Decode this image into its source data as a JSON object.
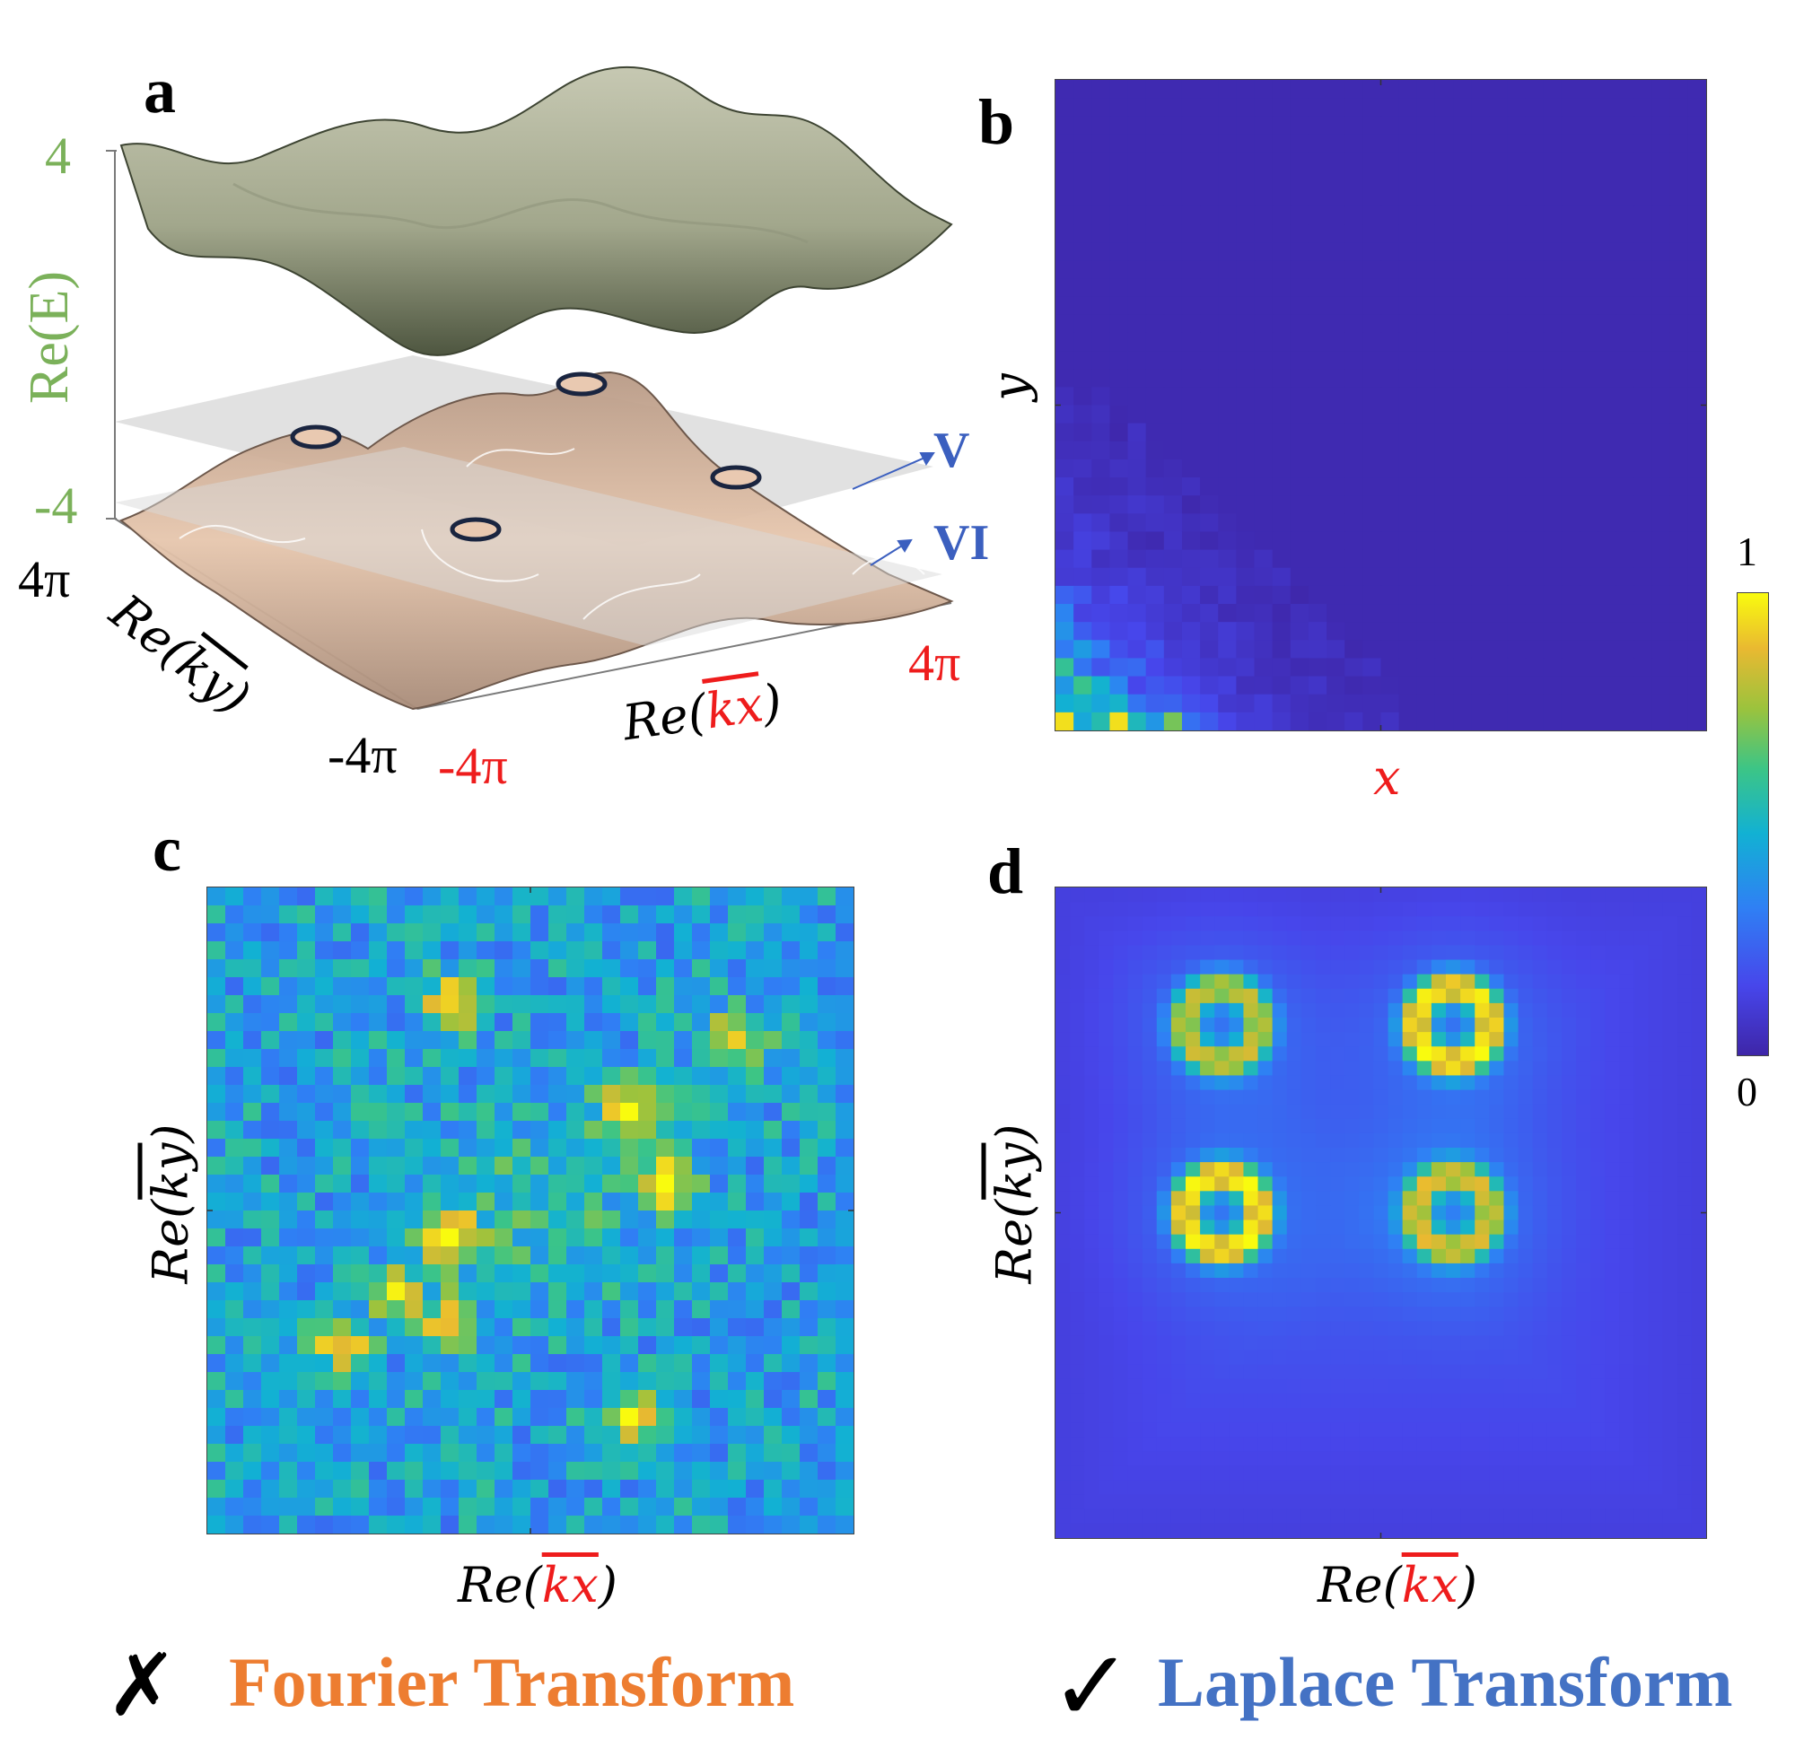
{
  "panels": {
    "a": {
      "letter": "a",
      "z_axis": {
        "label": "Re(E)",
        "max": "4",
        "min": "-4"
      },
      "ky_axis": {
        "prefix": "Re(",
        "var": "ky",
        "suffix": ")",
        "max": "4π",
        "min": "-4π"
      },
      "kx_axis": {
        "prefix": "Re(",
        "var": "kx",
        "suffix": ")",
        "max": "4π",
        "min": "-4π"
      },
      "planes": [
        "V",
        "VI"
      ]
    },
    "b": {
      "letter": "b",
      "xlabel": "x",
      "ylabel": "y"
    },
    "c": {
      "letter": "c",
      "xlabel": {
        "prefix": "Re(",
        "var": "kx",
        "suffix": ")"
      },
      "ylabel": {
        "prefix": "Re(",
        "var": "ky",
        "suffix": ")"
      }
    },
    "d": {
      "letter": "d",
      "xlabel": {
        "prefix": "Re(",
        "var": "kx",
        "suffix": ")"
      },
      "ylabel": {
        "prefix": "Re(",
        "var": "ky",
        "suffix": ")"
      }
    }
  },
  "colorbar": {
    "max": "1",
    "min": "0"
  },
  "captions": {
    "fourier": {
      "mark": "✗",
      "text": "Fourier Transform"
    },
    "laplace": {
      "mark": "✓",
      "text": "Laplace Transform"
    }
  },
  "colors": {
    "fourier": "#ed7d31",
    "laplace": "#4472c4",
    "red": "#ee1c1c",
    "green": "#7bb15a"
  }
}
